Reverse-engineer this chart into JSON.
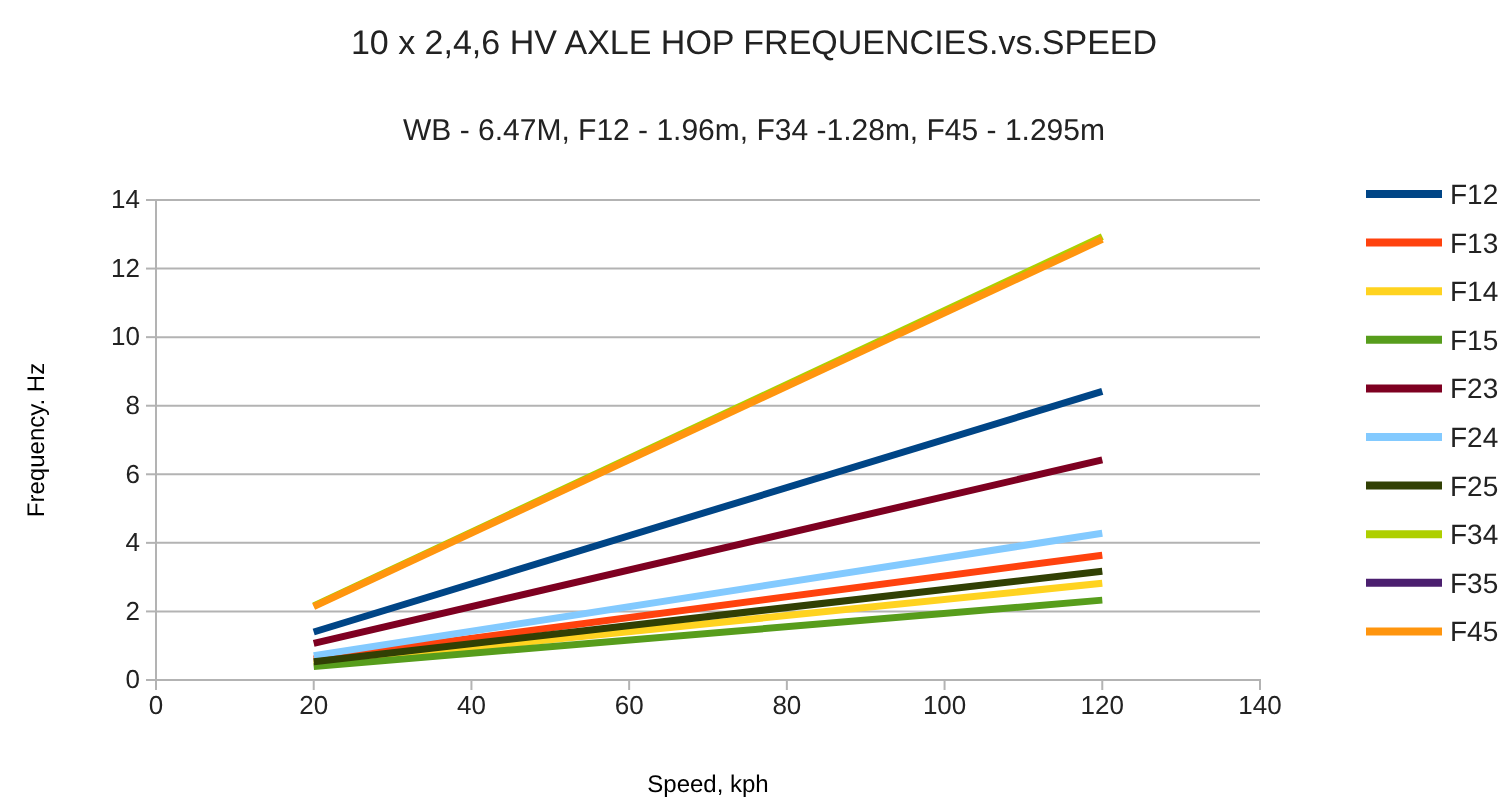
{
  "chart_data": {
    "type": "line",
    "title": "10 x 2,4,6 HV AXLE HOP FREQUENCIES.vs.SPEED",
    "subtitle": "WB - 6.47M, F12 - 1.96m, F34 -1.28m, F45 - 1.295m",
    "xlabel": "Speed, kph",
    "ylabel": "Frequency. Hz",
    "x": [
      20,
      120
    ],
    "xlim": [
      0,
      140
    ],
    "xticks": [
      0,
      20,
      40,
      60,
      80,
      100,
      120,
      140
    ],
    "ylim": [
      0,
      14
    ],
    "yticks": [
      0,
      2,
      4,
      6,
      8,
      10,
      12,
      14
    ],
    "grid": "y",
    "legend": "right",
    "marker": "none",
    "line_style": "solid",
    "series": [
      {
        "name": "F12",
        "color": "#004586",
        "values": [
          1.4,
          8.42
        ]
      },
      {
        "name": "F13",
        "color": "#ff420e",
        "values": [
          0.61,
          3.64
        ]
      },
      {
        "name": "F14",
        "color": "#ffd320",
        "values": [
          0.47,
          2.82
        ]
      },
      {
        "name": "F15",
        "color": "#579d1c",
        "values": [
          0.39,
          2.33
        ]
      },
      {
        "name": "F23",
        "color": "#7e0021",
        "values": [
          1.07,
          6.42
        ]
      },
      {
        "name": "F24",
        "color": "#83caff",
        "values": [
          0.71,
          4.28
        ]
      },
      {
        "name": "F25",
        "color": "#314004",
        "values": [
          0.53,
          3.17
        ]
      },
      {
        "name": "F34",
        "color": "#aecf00",
        "values": [
          2.16,
          12.93
        ]
      },
      {
        "name": "F35",
        "color": "#4b1f6f",
        "values": [
          null,
          null
        ]
      },
      {
        "name": "F45",
        "color": "#ff950e",
        "values": [
          2.14,
          12.85
        ]
      }
    ]
  }
}
